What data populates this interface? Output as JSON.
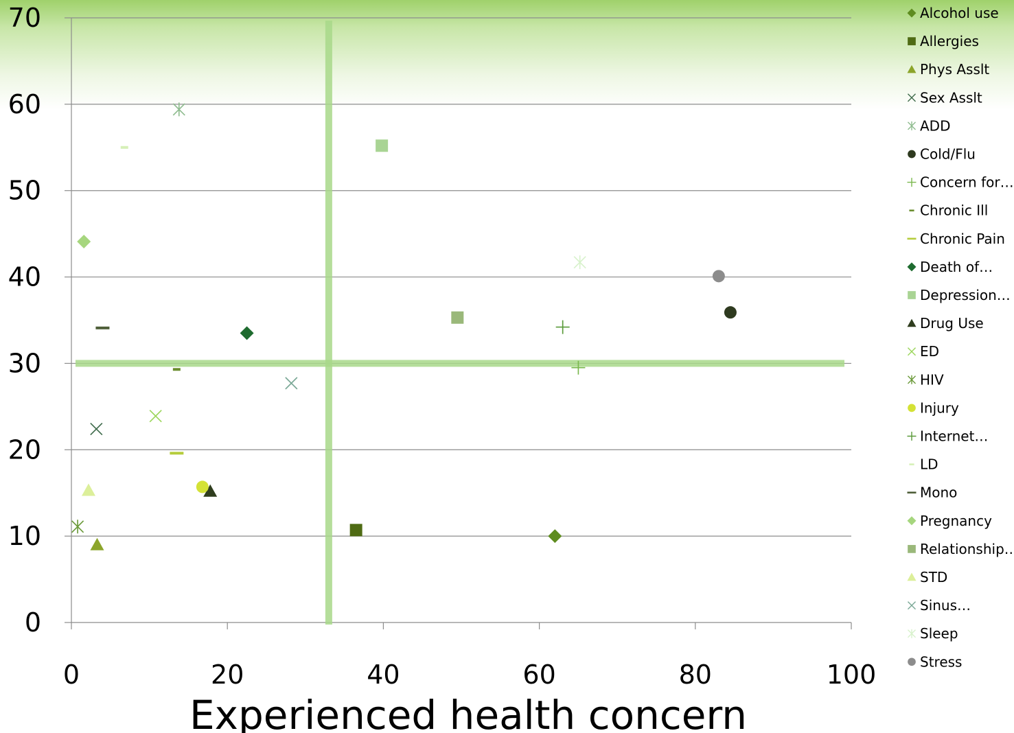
{
  "chart_data": {
    "type": "scatter",
    "title": "",
    "xlabel": "Experienced health concern",
    "ylabel": "",
    "xlim": [
      0,
      100
    ],
    "ylim": [
      0,
      70
    ],
    "x_ticks": [
      "0",
      "20",
      "40",
      "60",
      "80",
      "100"
    ],
    "y_ticks": [
      "0",
      "10",
      "20",
      "30",
      "40",
      "50",
      "60",
      "70"
    ],
    "grid": "horizontal",
    "legend_position": "right",
    "reference_lines": {
      "vertical_x": 33,
      "horizontal_y": 30
    },
    "series": [
      {
        "name": "Alcohol use",
        "marker": "diamond",
        "color": "#5e8c1f",
        "points": [
          [
            62,
            10
          ]
        ]
      },
      {
        "name": "Allergies",
        "marker": "square",
        "color": "#4f6b14",
        "points": [
          [
            36.5,
            10.7
          ]
        ]
      },
      {
        "name": "Phys Asslt",
        "marker": "triangle",
        "color": "#8ca52b",
        "points": [
          [
            3.3,
            9
          ]
        ]
      },
      {
        "name": "Sex Asslt",
        "marker": "x",
        "color": "#3f6b4b",
        "points": [
          [
            3.2,
            22.4
          ]
        ]
      },
      {
        "name": "ADD",
        "marker": "asterisk",
        "color": "#8fbc8f",
        "points": [
          [
            13.8,
            59.4
          ]
        ]
      },
      {
        "name": "Cold/Flu",
        "marker": "circle",
        "color": "#2e3a1f",
        "points": [
          [
            84.5,
            35.9
          ]
        ]
      },
      {
        "name": "Concern for…",
        "marker": "plus",
        "color": "#7ab84e",
        "points": [
          [
            65,
            29.5
          ]
        ]
      },
      {
        "name": "Chronic Ill",
        "marker": "dash",
        "color": "#6b8e2f",
        "points": [
          [
            13.5,
            29.3
          ]
        ]
      },
      {
        "name": "Chronic Pain",
        "marker": "longdash",
        "color": "#b5cc3c",
        "points": [
          [
            13.5,
            19.6
          ]
        ]
      },
      {
        "name": "Death of…",
        "marker": "diamond",
        "color": "#1e6b2f",
        "points": [
          [
            22.5,
            33.5
          ]
        ]
      },
      {
        "name": "Depression…",
        "marker": "square",
        "color": "#a9d494",
        "points": [
          [
            39.8,
            55.2
          ]
        ]
      },
      {
        "name": "Drug Use",
        "marker": "triangle",
        "color": "#2f3d1e",
        "points": [
          [
            17.8,
            15.2
          ]
        ]
      },
      {
        "name": "ED",
        "marker": "x",
        "color": "#9bd65a",
        "points": [
          [
            10.8,
            23.9
          ]
        ]
      },
      {
        "name": "HIV",
        "marker": "asterisk",
        "color": "#6b9a3a",
        "points": [
          [
            0.8,
            11.1
          ]
        ]
      },
      {
        "name": "Injury",
        "marker": "circle",
        "color": "#d4e236",
        "points": [
          [
            16.8,
            15.7
          ]
        ]
      },
      {
        "name": "Internet…",
        "marker": "plus",
        "color": "#5a9a3a",
        "points": [
          [
            63,
            34.2
          ]
        ]
      },
      {
        "name": "LD",
        "marker": "dash",
        "color": "#d6f0b8",
        "points": [
          [
            6.8,
            55
          ]
        ]
      },
      {
        "name": "Mono",
        "marker": "longdash",
        "color": "#4e5e38",
        "points": [
          [
            4,
            34.1
          ]
        ]
      },
      {
        "name": "Pregnancy",
        "marker": "diamond",
        "color": "#a6d67e",
        "points": [
          [
            1.6,
            44.1
          ]
        ]
      },
      {
        "name": "Relationship…",
        "marker": "square",
        "color": "#9ab87a",
        "points": [
          [
            49.5,
            35.3
          ]
        ]
      },
      {
        "name": "STD",
        "marker": "triangle",
        "color": "#dcef9a",
        "points": [
          [
            2.2,
            15.3
          ]
        ]
      },
      {
        "name": "Sinus…",
        "marker": "x",
        "color": "#7aa896",
        "points": [
          [
            28.2,
            27.7
          ]
        ]
      },
      {
        "name": "Sleep",
        "marker": "asterisk",
        "color": "#d8f2cc",
        "points": [
          [
            65.2,
            41.7
          ]
        ]
      },
      {
        "name": "Stress",
        "marker": "circle",
        "color": "#8c8c8c",
        "points": [
          [
            83,
            40.1
          ]
        ]
      }
    ]
  }
}
